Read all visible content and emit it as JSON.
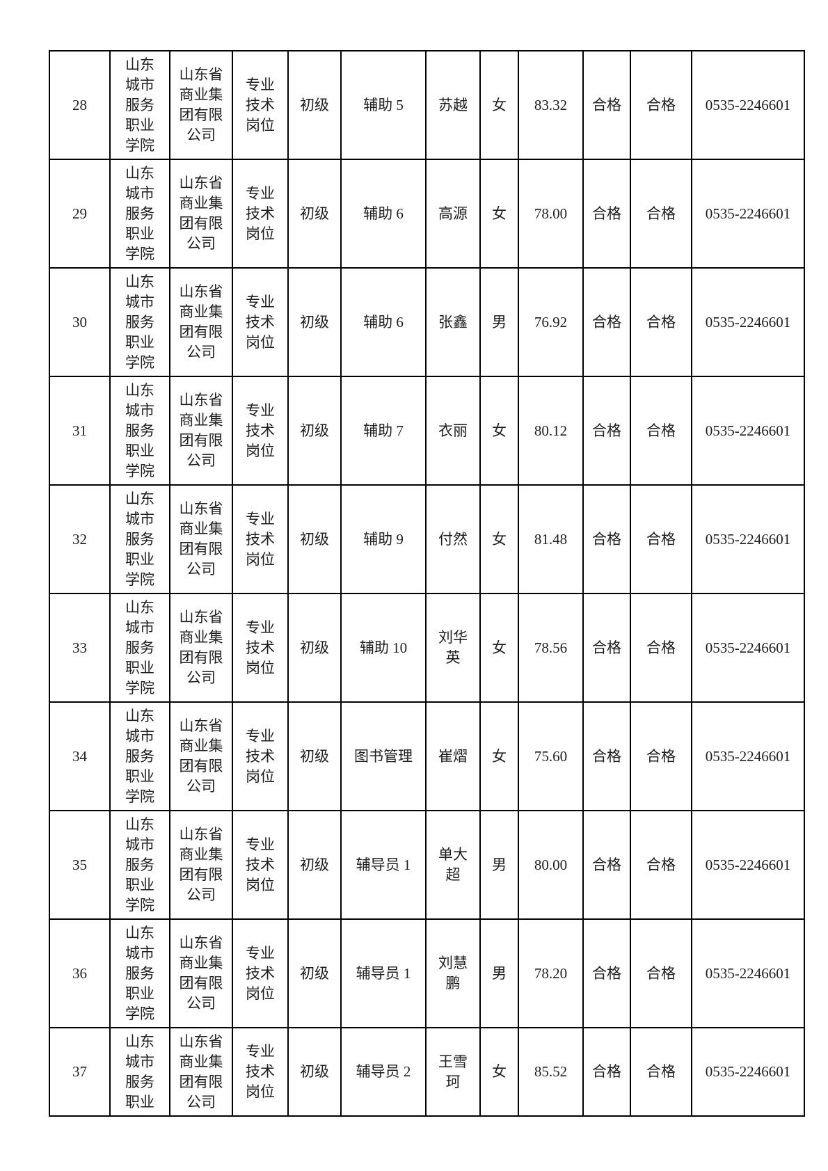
{
  "colors": {
    "background": "#ffffff",
    "ink": "#1e1e1e",
    "grid": "#000000"
  },
  "table": {
    "fields": [
      "serial",
      "employer",
      "organizer",
      "post_category",
      "post_level",
      "post_name",
      "candidate_name",
      "gender",
      "score",
      "result_1",
      "result_2",
      "phone"
    ],
    "rows": [
      {
        "serial": "28",
        "employer": "山东\n城市\n服务\n职业\n学院",
        "organizer": "山东省\n商业集\n团有限\n公司",
        "post_category": "专业\n技术\n岗位",
        "post_level": "初级",
        "post_name": "辅助 5",
        "candidate_name": "苏越",
        "gender": "女",
        "score": "83.32",
        "result_1": "合格",
        "result_2": "合格",
        "phone": "0535-2246601"
      },
      {
        "serial": "29",
        "employer": "山东\n城市\n服务\n职业\n学院",
        "organizer": "山东省\n商业集\n团有限\n公司",
        "post_category": "专业\n技术\n岗位",
        "post_level": "初级",
        "post_name": "辅助 6",
        "candidate_name": "高源",
        "gender": "女",
        "score": "78.00",
        "result_1": "合格",
        "result_2": "合格",
        "phone": "0535-2246601"
      },
      {
        "serial": "30",
        "employer": "山东\n城市\n服务\n职业\n学院",
        "organizer": "山东省\n商业集\n团有限\n公司",
        "post_category": "专业\n技术\n岗位",
        "post_level": "初级",
        "post_name": "辅助 6",
        "candidate_name": "张鑫",
        "gender": "男",
        "score": "76.92",
        "result_1": "合格",
        "result_2": "合格",
        "phone": "0535-2246601"
      },
      {
        "serial": "31",
        "employer": "山东\n城市\n服务\n职业\n学院",
        "organizer": "山东省\n商业集\n团有限\n公司",
        "post_category": "专业\n技术\n岗位",
        "post_level": "初级",
        "post_name": "辅助 7",
        "candidate_name": "衣丽",
        "gender": "女",
        "score": "80.12",
        "result_1": "合格",
        "result_2": "合格",
        "phone": "0535-2246601"
      },
      {
        "serial": "32",
        "employer": "山东\n城市\n服务\n职业\n学院",
        "organizer": "山东省\n商业集\n团有限\n公司",
        "post_category": "专业\n技术\n岗位",
        "post_level": "初级",
        "post_name": "辅助 9",
        "candidate_name": "付然",
        "gender": "女",
        "score": "81.48",
        "result_1": "合格",
        "result_2": "合格",
        "phone": "0535-2246601"
      },
      {
        "serial": "33",
        "employer": "山东\n城市\n服务\n职业\n学院",
        "organizer": "山东省\n商业集\n团有限\n公司",
        "post_category": "专业\n技术\n岗位",
        "post_level": "初级",
        "post_name": "辅助 10",
        "candidate_name": "刘华\n英",
        "gender": "女",
        "score": "78.56",
        "result_1": "合格",
        "result_2": "合格",
        "phone": "0535-2246601"
      },
      {
        "serial": "34",
        "employer": "山东\n城市\n服务\n职业\n学院",
        "organizer": "山东省\n商业集\n团有限\n公司",
        "post_category": "专业\n技术\n岗位",
        "post_level": "初级",
        "post_name": "图书管理",
        "candidate_name": "崔熠",
        "gender": "女",
        "score": "75.60",
        "result_1": "合格",
        "result_2": "合格",
        "phone": "0535-2246601"
      },
      {
        "serial": "35",
        "employer": "山东\n城市\n服务\n职业\n学院",
        "organizer": "山东省\n商业集\n团有限\n公司",
        "post_category": "专业\n技术\n岗位",
        "post_level": "初级",
        "post_name": "辅导员 1",
        "candidate_name": "单大\n超",
        "gender": "男",
        "score": "80.00",
        "result_1": "合格",
        "result_2": "合格",
        "phone": "0535-2246601"
      },
      {
        "serial": "36",
        "employer": "山东\n城市\n服务\n职业\n学院",
        "organizer": "山东省\n商业集\n团有限\n公司",
        "post_category": "专业\n技术\n岗位",
        "post_level": "初级",
        "post_name": "辅导员 1",
        "candidate_name": "刘慧\n鹏",
        "gender": "男",
        "score": "78.20",
        "result_1": "合格",
        "result_2": "合格",
        "phone": "0535-2246601"
      },
      {
        "serial": "37",
        "employer": "山东\n城市\n服务\n职业",
        "organizer": "山东省\n商业集\n团有限\n公司",
        "post_category": "专业\n技术\n岗位",
        "post_level": "初级",
        "post_name": "辅导员 2",
        "candidate_name": "王雪\n珂",
        "gender": "女",
        "score": "85.52",
        "result_1": "合格",
        "result_2": "合格",
        "phone": "0535-2246601"
      }
    ]
  }
}
